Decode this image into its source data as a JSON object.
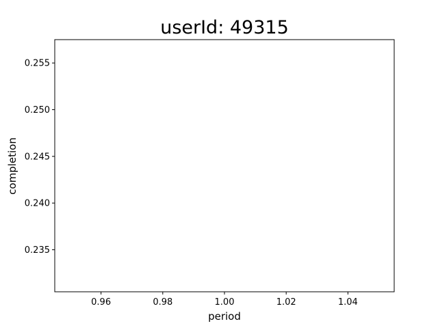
{
  "chart_data": {
    "type": "line",
    "title": "userId: 49315",
    "xlabel": "period",
    "ylabel": "completion",
    "xlim": [
      0.945,
      1.055
    ],
    "ylim": [
      0.2305,
      0.2575
    ],
    "x_ticks": [
      0.96,
      0.98,
      1.0,
      1.02,
      1.04
    ],
    "x_tick_labels": [
      "0.96",
      "0.98",
      "1.00",
      "1.02",
      "1.04"
    ],
    "y_ticks": [
      0.235,
      0.24,
      0.245,
      0.25,
      0.255
    ],
    "y_tick_labels": [
      "0.235",
      "0.240",
      "0.245",
      "0.250",
      "0.255"
    ],
    "series": [],
    "grid": false,
    "legend": "none"
  }
}
